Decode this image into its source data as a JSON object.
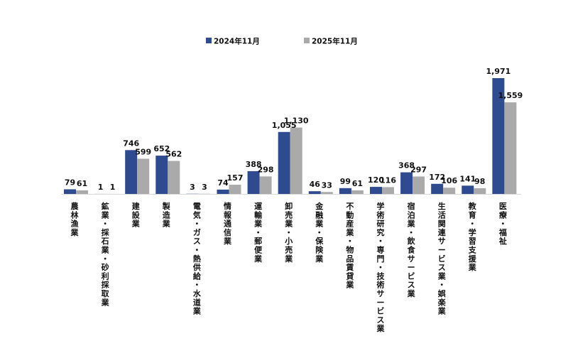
{
  "chart_data": {
    "type": "bar",
    "title": "",
    "xlabel": "",
    "ylabel": "",
    "grid": false,
    "legend_position": "top-center",
    "categories": [
      "農林漁業",
      "鉱業・採石業・砂利採取業",
      "建設業",
      "製造業",
      "電気・ガス・熱供給・水道業",
      "情報通信業",
      "運輸業・郵便業",
      "卸売業・小売業",
      "金融業・保険業",
      "不動産業・物品賃貸業",
      "学術研究・専門・技術サービス業",
      "宿泊業・飲食サービス業",
      "生活関連サービス業・娯楽業",
      "教育・学習支援業",
      "医療・福祉"
    ],
    "series": [
      {
        "name": "2024年11月",
        "color": "#2F4B8F",
        "values": [
          79,
          1,
          746,
          652,
          3,
          74,
          388,
          1055,
          46,
          99,
          120,
          368,
          172,
          141,
          1971
        ],
        "labels": [
          "79",
          "1",
          "746",
          "652",
          "3",
          "74",
          "388",
          "1,055",
          "46",
          "99",
          "120",
          "368",
          "172",
          "141",
          "1,971"
        ]
      },
      {
        "name": "2025年11月",
        "color": "#AAAAAA",
        "values": [
          61,
          1,
          599,
          562,
          3,
          157,
          298,
          1130,
          33,
          61,
          116,
          297,
          106,
          98,
          1559
        ],
        "labels": [
          "61",
          "1",
          "599",
          "562",
          "3",
          "157",
          "298",
          "1,130",
          "33",
          "61",
          "116",
          "297",
          "106",
          "98",
          "1,559"
        ]
      }
    ],
    "ylim": [
      0,
      2000
    ]
  }
}
